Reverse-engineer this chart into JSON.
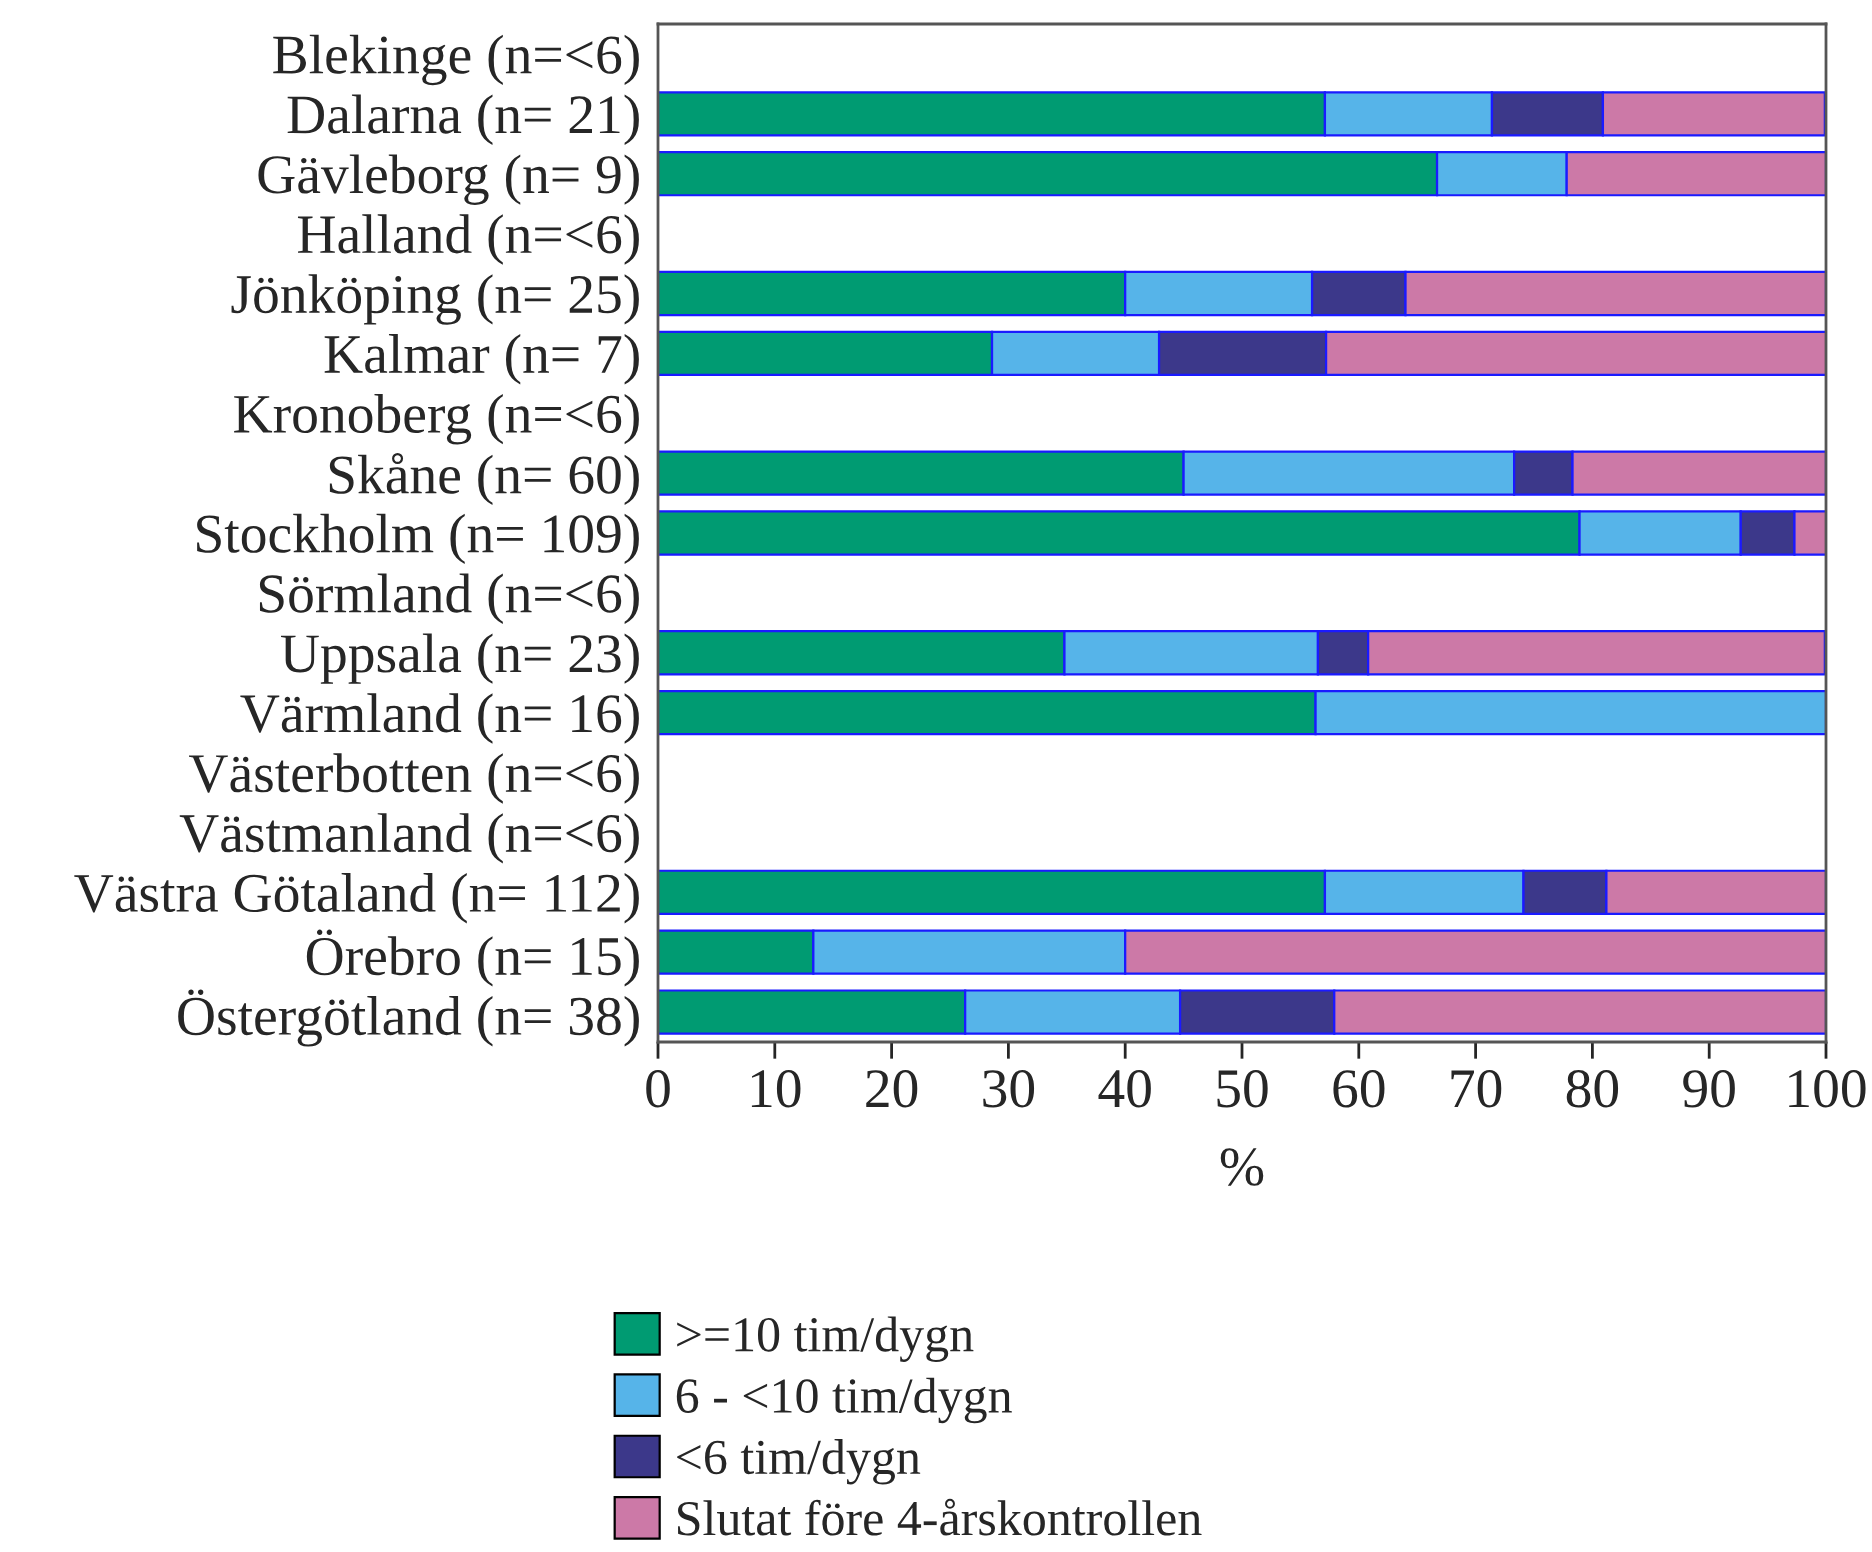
{
  "chart_data": {
    "type": "bar",
    "orientation": "horizontal",
    "stacked": true,
    "xlabel": "%",
    "categories": [
      "Blekinge (n=<6)",
      "Dalarna (n= 21)",
      "Gävleborg (n= 9)",
      "Halland (n=<6)",
      "Jönköping (n= 25)",
      "Kalmar (n= 7)",
      "Kronoberg (n=<6)",
      "Skåne (n= 60)",
      "Stockholm (n= 109)",
      "Sörmland (n=<6)",
      "Uppsala (n= 23)",
      "Värmland (n= 16)",
      "Västerbotten (n=<6)",
      "Västmanland (n=<6)",
      "Västra Götaland (n= 112)",
      "Örebro (n= 15)",
      "Östergötland (n= 38)"
    ],
    "series": [
      {
        "name": ">=10 tim/dygn",
        "color": "#009b72",
        "values": [
          null,
          57.1,
          66.7,
          null,
          40,
          28.6,
          null,
          45,
          78.9,
          null,
          34.8,
          56.3,
          null,
          null,
          57.1,
          13.3,
          26.3
        ]
      },
      {
        "name": "6 - <10 tim/dygn",
        "color": "#56b4e9",
        "values": [
          null,
          14.3,
          11.1,
          null,
          16,
          14.3,
          null,
          28.3,
          13.8,
          null,
          21.7,
          43.7,
          null,
          null,
          17.0,
          26.7,
          18.4
        ]
      },
      {
        "name": "<6 tim/dygn",
        "color": "#3c388a",
        "values": [
          null,
          9.5,
          0,
          null,
          8,
          14.3,
          null,
          5,
          4.6,
          null,
          4.3,
          0,
          null,
          null,
          7.1,
          0,
          13.2
        ]
      },
      {
        "name": "Slutat före 4-årskontrollen",
        "color": "#cc79a7",
        "values": [
          null,
          19.0,
          22.2,
          null,
          36,
          42.9,
          null,
          21.7,
          2.8,
          null,
          39.1,
          0,
          null,
          null,
          18.8,
          60,
          42.1
        ]
      }
    ],
    "xlim": [
      0,
      100
    ],
    "xticks": [
      0,
      10,
      20,
      30,
      40,
      50,
      60,
      70,
      80,
      90,
      100
    ],
    "grid": false,
    "legend": "bottom"
  }
}
